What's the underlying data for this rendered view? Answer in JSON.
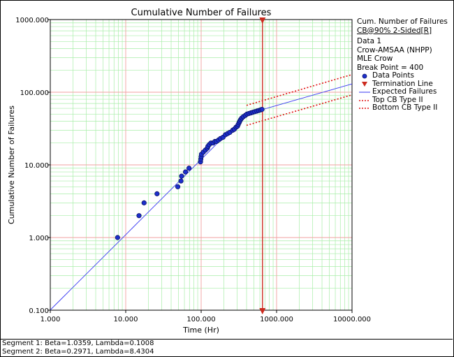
{
  "chart_data": {
    "type": "scatter",
    "title": "Cumulative Number of Failures",
    "xlabel": "Time (Hr)",
    "ylabel": "Cumulative Number of Failures",
    "x_scale": "log",
    "y_scale": "log",
    "xlim": [
      1,
      10000
    ],
    "ylim": [
      0.1,
      1000
    ],
    "x_ticks": [
      "1.000",
      "10.000",
      "100.000",
      "1000.000",
      "10000.000"
    ],
    "y_ticks": [
      "0.100",
      "1.000",
      "10.000",
      "100.000",
      "1000.000"
    ],
    "grid": true,
    "legend_position": "right",
    "termination_time": 650,
    "break_point": 400,
    "data_points": [
      {
        "x": 7.8,
        "y": 1
      },
      {
        "x": 15,
        "y": 2
      },
      {
        "x": 17.5,
        "y": 3
      },
      {
        "x": 26,
        "y": 4
      },
      {
        "x": 49,
        "y": 5
      },
      {
        "x": 54,
        "y": 6
      },
      {
        "x": 55,
        "y": 7
      },
      {
        "x": 62,
        "y": 8
      },
      {
        "x": 69,
        "y": 9
      },
      {
        "x": 98,
        "y": 11
      },
      {
        "x": 99,
        "y": 12
      },
      {
        "x": 100,
        "y": 13
      },
      {
        "x": 101,
        "y": 14
      },
      {
        "x": 107,
        "y": 15
      },
      {
        "x": 114,
        "y": 16
      },
      {
        "x": 121,
        "y": 17
      },
      {
        "x": 123,
        "y": 18
      },
      {
        "x": 128,
        "y": 19
      },
      {
        "x": 135,
        "y": 20
      },
      {
        "x": 144,
        "y": 20
      },
      {
        "x": 152,
        "y": 21
      },
      {
        "x": 160,
        "y": 21
      },
      {
        "x": 170,
        "y": 22
      },
      {
        "x": 180,
        "y": 23
      },
      {
        "x": 195,
        "y": 24
      },
      {
        "x": 210,
        "y": 26
      },
      {
        "x": 225,
        "y": 27
      },
      {
        "x": 240,
        "y": 28
      },
      {
        "x": 262,
        "y": 30
      },
      {
        "x": 275,
        "y": 31
      },
      {
        "x": 290,
        "y": 33
      },
      {
        "x": 303,
        "y": 34
      },
      {
        "x": 310,
        "y": 36
      },
      {
        "x": 318,
        "y": 38
      },
      {
        "x": 325,
        "y": 40
      },
      {
        "x": 334,
        "y": 42
      },
      {
        "x": 345,
        "y": 44
      },
      {
        "x": 362,
        "y": 46
      },
      {
        "x": 385,
        "y": 48
      },
      {
        "x": 405,
        "y": 50
      },
      {
        "x": 430,
        "y": 51
      },
      {
        "x": 458,
        "y": 52
      },
      {
        "x": 485,
        "y": 53
      },
      {
        "x": 515,
        "y": 54
      },
      {
        "x": 548,
        "y": 55
      },
      {
        "x": 578,
        "y": 56
      },
      {
        "x": 612,
        "y": 57
      },
      {
        "x": 640,
        "y": 58
      }
    ],
    "series": [
      {
        "name": "Data Points",
        "style": "marker",
        "color": "#1d2fcc"
      },
      {
        "name": "Termination Line",
        "style": "vline",
        "color": "#cc2a1e"
      },
      {
        "name": "Expected Failures",
        "style": "line",
        "color": "#3a3af2",
        "segments": [
          {
            "label": "Segment 1",
            "beta": 1.0359,
            "lambda": 0.1008,
            "x_from": 1,
            "x_to": 400
          },
          {
            "label": "Segment 2",
            "beta": 0.2971,
            "lambda": 8.4304,
            "x_from": 400,
            "x_to": 10000
          }
        ]
      },
      {
        "name": "Top CB Type II",
        "style": "dotted",
        "color": "#e01010",
        "points": [
          {
            "x": 400,
            "y": 66
          },
          {
            "x": 10000,
            "y": 175
          }
        ]
      },
      {
        "name": "Bottom CB Type II",
        "style": "dotted",
        "color": "#e01010",
        "points": [
          {
            "x": 400,
            "y": 35
          },
          {
            "x": 10000,
            "y": 92
          }
        ]
      }
    ]
  },
  "legend": {
    "title_line1": "Cum. Number of Failures",
    "title_line2": "CB@90% 2-Sided[R]",
    "info_lines": [
      "Data 1",
      "Crow-AMSAA (NHPP)",
      "MLE Crow",
      "Break Point = 400"
    ],
    "entries": [
      "Data Points",
      "Termination Line",
      "Expected Failures",
      "Top CB Type II",
      "Bottom CB Type II"
    ]
  },
  "status": {
    "segment1": "Segment 1: Beta=1.0359, Lambda=0.1008",
    "segment2": "Segment 2: Beta=0.2971, Lambda=8.4304"
  },
  "colors": {
    "major_grid": "#f2a0a0",
    "minor_grid": "#a8eea8",
    "marker_fill": "#1d2fcc",
    "termination": "#cc2a1e",
    "fit_line": "#3a3af2",
    "bounds": "#e01010"
  }
}
